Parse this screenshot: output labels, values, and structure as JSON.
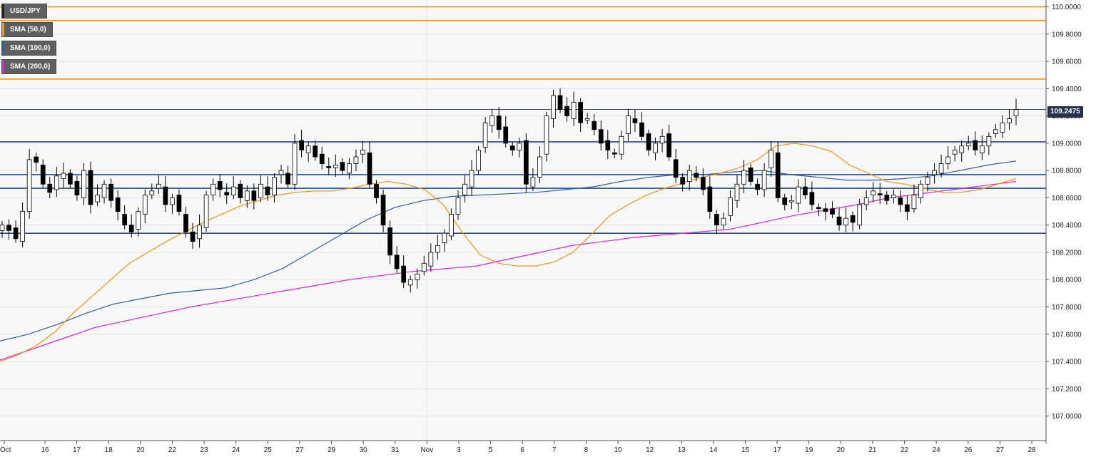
{
  "legend": [
    {
      "label": "USD/JPY",
      "color": "#222222"
    },
    {
      "label": "SMA (50,0)",
      "color": "#f7931e"
    },
    {
      "label": "SMA (100,0)",
      "color": "#2e5ea8"
    },
    {
      "label": "SMA (200,0)",
      "color": "#e21ee7"
    }
  ],
  "current_price": "109.2475",
  "chart_data": {
    "type": "candlestick",
    "symbol": "USD/JPY",
    "ylim": [
      106.82,
      110.05
    ],
    "y_ticks": [
      "110.0000",
      "109.8000",
      "109.6000",
      "109.4000",
      "109.2000",
      "109.0000",
      "108.8000",
      "108.6000",
      "108.4000",
      "108.2000",
      "108.0000",
      "107.8000",
      "107.6000",
      "107.4000",
      "107.2000",
      "107.0000"
    ],
    "x_ticks": [
      "Oct",
      "16",
      "17",
      "18",
      "20",
      "22",
      "23",
      "24",
      "25",
      "27",
      "29",
      "30",
      "31",
      "Nov",
      "3",
      "5",
      "6",
      "7",
      "8",
      "10",
      "12",
      "13",
      "14",
      "15",
      "17",
      "19",
      "20",
      "21",
      "22",
      "24",
      "26",
      "27",
      "28"
    ],
    "horizontal_levels": {
      "resistance_orange": [
        110.0,
        109.9,
        109.47
      ],
      "support_blue": [
        109.01,
        108.77,
        108.67,
        108.34
      ],
      "current_price_line": 109.2475
    },
    "colors": {
      "up_candle": "#ffffff",
      "down_candle": "#000000",
      "sma50": "#f7931e",
      "sma100": "#2e5ea8",
      "sma200": "#e21ee7",
      "resistance": "#f7931e",
      "support": "#1f4e9c"
    },
    "close_path": [
      108.4,
      108.36,
      108.3,
      108.5,
      108.88,
      108.86,
      108.7,
      108.64,
      108.76,
      108.78,
      108.7,
      108.62,
      108.8,
      108.55,
      108.62,
      108.7,
      108.58,
      108.5,
      108.4,
      108.35,
      108.5,
      108.62,
      108.65,
      108.7,
      108.55,
      108.6,
      108.5,
      108.35,
      108.28,
      108.4,
      108.62,
      108.7,
      108.66,
      108.62,
      108.68,
      108.6,
      108.65,
      108.58,
      108.7,
      108.62,
      108.75,
      108.8,
      108.7,
      109.0,
      108.95,
      108.98,
      108.9,
      108.85,
      108.82,
      108.84,
      108.8,
      108.85,
      108.9,
      108.95,
      108.7,
      108.6,
      108.4,
      108.18,
      108.08,
      107.98,
      108.0,
      108.04,
      108.12,
      108.2,
      108.25,
      108.34,
      108.48,
      108.6,
      108.7,
      108.8,
      108.95,
      109.15,
      109.2,
      109.1,
      109.0,
      108.95,
      109.0,
      108.7,
      108.75,
      108.9,
      109.2,
      109.35,
      109.25,
      109.2,
      109.3,
      109.15,
      109.18,
      109.1,
      109.0,
      108.95,
      108.92,
      109.05,
      109.2,
      109.15,
      109.05,
      108.95,
      109.0,
      109.05,
      108.9,
      108.75,
      108.7,
      108.8,
      108.75,
      108.66,
      108.5,
      108.4,
      108.45,
      108.6,
      108.7,
      108.8,
      108.72,
      108.66,
      108.8,
      108.95,
      108.6,
      108.55,
      108.58,
      108.68,
      108.62,
      108.55,
      108.52,
      108.5,
      108.48,
      108.4,
      108.45,
      108.42,
      108.55,
      108.6,
      108.65,
      108.62,
      108.58,
      108.62,
      108.55,
      108.5,
      108.62,
      108.7,
      108.75,
      108.8,
      108.85,
      108.9,
      108.95,
      108.98,
      109.0,
      108.95,
      108.98,
      109.05,
      109.1,
      109.15,
      109.18,
      109.2475
    ],
    "sma50_path": [
      107.4,
      107.45,
      107.52,
      107.62,
      107.76,
      107.88,
      108.0,
      108.12,
      108.2,
      108.28,
      108.35,
      108.42,
      108.48,
      108.54,
      108.58,
      108.62,
      108.64,
      108.65,
      108.65,
      108.67,
      108.7,
      108.72,
      108.7,
      108.66,
      108.55,
      108.35,
      108.18,
      108.12,
      108.1,
      108.1,
      108.13,
      108.2,
      108.33,
      108.47,
      108.55,
      108.62,
      108.67,
      108.71,
      108.75,
      108.78,
      108.82,
      108.88,
      108.98,
      109.0,
      108.98,
      108.94,
      108.84,
      108.78,
      108.72,
      108.7,
      108.67,
      108.64,
      108.64,
      108.66,
      108.7,
      108.74
    ],
    "sma100_path": [
      107.55,
      107.6,
      107.67,
      107.75,
      107.82,
      107.86,
      107.9,
      107.92,
      107.94,
      108.0,
      108.08,
      108.2,
      108.32,
      108.44,
      108.53,
      108.58,
      108.61,
      108.62,
      108.63,
      108.64,
      108.66,
      108.68,
      108.72,
      108.75,
      108.77,
      108.77,
      108.79,
      108.8,
      108.77,
      108.75,
      108.73,
      108.73,
      108.74,
      108.76,
      108.8,
      108.84,
      108.87
    ],
    "sma200_path": [
      107.41,
      107.49,
      107.57,
      107.65,
      107.7,
      107.75,
      107.8,
      107.84,
      107.88,
      107.92,
      107.96,
      108.0,
      108.03,
      108.06,
      108.08,
      108.1,
      108.15,
      108.2,
      108.25,
      108.28,
      108.31,
      108.33,
      108.35,
      108.37,
      108.42,
      108.47,
      108.51,
      108.55,
      108.6,
      108.63,
      108.66,
      108.69,
      108.72
    ]
  }
}
